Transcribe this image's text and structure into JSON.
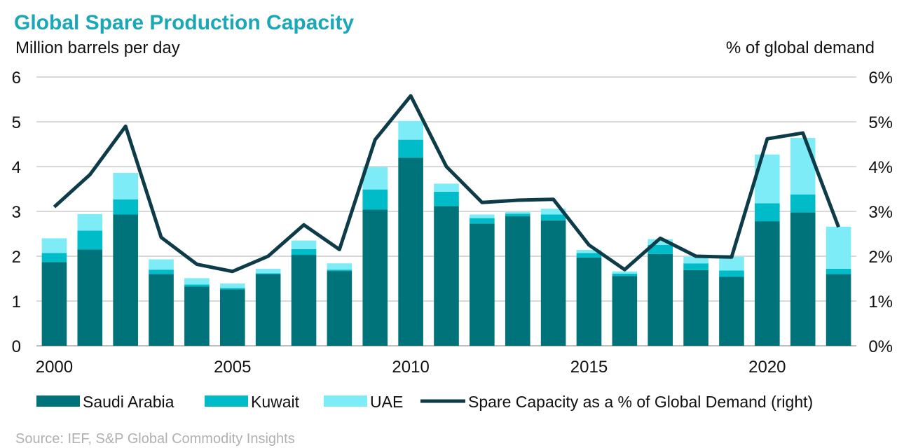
{
  "chart_data": {
    "type": "bar",
    "stacked": true,
    "title": "Global Spare Production Capacity",
    "ylabel_left": "Million barrels per day",
    "ylabel_right": "% of global demand",
    "source": "Source: IEF, S&P Global Commodity Insights",
    "years": [
      2000,
      2001,
      2002,
      2003,
      2004,
      2005,
      2006,
      2007,
      2008,
      2009,
      2010,
      2011,
      2012,
      2013,
      2014,
      2015,
      2016,
      2017,
      2018,
      2019,
      2020,
      2021,
      2022
    ],
    "x_tick_labels": [
      "2000",
      "2005",
      "2010",
      "2015",
      "2020"
    ],
    "x_tick_years": [
      2000,
      2005,
      2010,
      2015,
      2020
    ],
    "ylim_left": [
      0,
      6
    ],
    "y_ticks_left": [
      "0",
      "1",
      "2",
      "3",
      "4",
      "5",
      "6"
    ],
    "ylim_right": [
      0,
      6
    ],
    "y_ticks_right": [
      "0%",
      "1%",
      "2%",
      "3%",
      "4%",
      "5%",
      "6%"
    ],
    "legend_position": "bottom",
    "series": [
      {
        "name": "Saudi Arabia",
        "color": "#00737a",
        "values": [
          1.87,
          2.15,
          2.93,
          1.6,
          1.32,
          1.26,
          1.6,
          2.03,
          1.67,
          3.04,
          4.2,
          3.12,
          2.73,
          2.89,
          2.8,
          1.97,
          1.56,
          2.05,
          1.69,
          1.54,
          2.78,
          2.98,
          1.6
        ]
      },
      {
        "name": "Kuwait",
        "color": "#00bcc8",
        "values": [
          0.2,
          0.42,
          0.34,
          0.1,
          0.05,
          0.03,
          0.02,
          0.13,
          0.03,
          0.45,
          0.4,
          0.32,
          0.12,
          0.06,
          0.13,
          0.1,
          0.05,
          0.2,
          0.15,
          0.14,
          0.4,
          0.4,
          0.12
        ]
      },
      {
        "name": "UAE",
        "color": "#7eecf7",
        "values": [
          0.33,
          0.37,
          0.59,
          0.23,
          0.14,
          0.1,
          0.1,
          0.19,
          0.14,
          0.5,
          0.42,
          0.18,
          0.08,
          0.04,
          0.13,
          0.07,
          0.05,
          0.13,
          0.15,
          0.31,
          1.09,
          1.26,
          0.94
        ]
      },
      {
        "name": "Spare Capacity as a % of Global Demand (right)",
        "type": "line",
        "color": "#0d3c48",
        "values": [
          3.1,
          3.82,
          4.9,
          2.42,
          1.82,
          1.66,
          2.0,
          2.7,
          2.15,
          4.6,
          5.58,
          4.0,
          3.2,
          3.25,
          3.27,
          2.25,
          1.7,
          2.4,
          2.0,
          1.98,
          4.62,
          4.75,
          2.65
        ]
      }
    ]
  }
}
